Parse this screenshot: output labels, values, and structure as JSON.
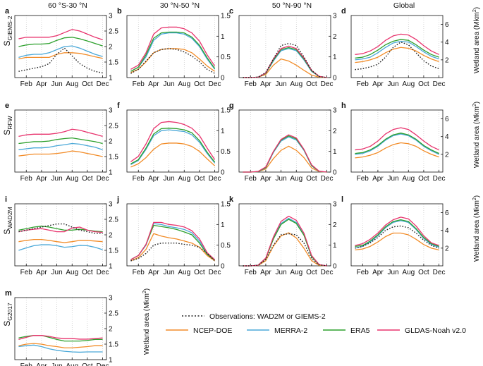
{
  "figure": {
    "row_labels": [
      {
        "main": "S",
        "sub": "GIEMS-2"
      },
      {
        "main": "S",
        "sub": "RFW"
      },
      {
        "main": "S",
        "sub": "WAD2M"
      },
      {
        "main": "S",
        "sub": "G2017"
      }
    ],
    "column_titles": [
      "60 °S-30 °N",
      "30 °N-50 °N",
      "50 °N-90 °N",
      "Global"
    ],
    "right_axis_label": "Wetland area (Mkm",
    "right_axis_label_sup": "2",
    "right_axis_label_close": ")"
  },
  "legend": {
    "observation_label": "Observations: WAD2M or GIEMS-2",
    "items": [
      {
        "key": "ncep",
        "label": "NCEP-DOE",
        "color": "#f28c28"
      },
      {
        "key": "merra",
        "label": "MERRA-2",
        "color": "#4aa8d8"
      },
      {
        "key": "era5",
        "label": "ERA5",
        "color": "#2ca02c"
      },
      {
        "key": "gldas",
        "label": "GLDAS-Noah v2.0",
        "color": "#e8336d"
      }
    ],
    "observation_color": "#222222"
  },
  "chart_data": [
    {
      "panel": "a",
      "type": "line",
      "row": 0,
      "col": 0,
      "ylim": [
        1,
        3
      ],
      "yticks": [
        1,
        1.5,
        2,
        2.5,
        3
      ],
      "xticks": [
        "Feb",
        "Apr",
        "Jun",
        "Aug",
        "Oct",
        "Dec"
      ],
      "series": {
        "obs": [
          1.2,
          1.25,
          1.3,
          1.35,
          1.45,
          1.75,
          1.95,
          1.7,
          1.45,
          1.3,
          1.2,
          1.15
        ],
        "ncep": [
          1.6,
          1.65,
          1.65,
          1.65,
          1.65,
          1.75,
          1.8,
          1.8,
          1.78,
          1.73,
          1.67,
          1.62
        ],
        "merra": [
          1.65,
          1.72,
          1.75,
          1.75,
          1.8,
          1.9,
          2.0,
          2.02,
          1.95,
          1.85,
          1.75,
          1.68
        ],
        "era5": [
          2.0,
          2.05,
          2.08,
          2.08,
          2.1,
          2.2,
          2.28,
          2.3,
          2.25,
          2.18,
          2.1,
          2.02
        ],
        "gldas": [
          2.25,
          2.3,
          2.3,
          2.3,
          2.3,
          2.35,
          2.45,
          2.55,
          2.5,
          2.4,
          2.3,
          2.22
        ]
      }
    },
    {
      "panel": "b",
      "type": "line",
      "row": 0,
      "col": 1,
      "ylim": [
        0,
        1.5
      ],
      "yticks": [
        0,
        0.5,
        1,
        1.5
      ],
      "xticks": [
        "Feb",
        "Apr",
        "Jun",
        "Aug",
        "Oct",
        "Dec"
      ],
      "series": {
        "obs": [
          0.1,
          0.2,
          0.4,
          0.6,
          0.68,
          0.7,
          0.68,
          0.62,
          0.52,
          0.38,
          0.2,
          0.1
        ],
        "ncep": [
          0.12,
          0.2,
          0.38,
          0.6,
          0.68,
          0.7,
          0.7,
          0.68,
          0.6,
          0.45,
          0.28,
          0.15
        ],
        "merra": [
          0.15,
          0.25,
          0.5,
          0.9,
          1.05,
          1.08,
          1.08,
          1.05,
          0.95,
          0.75,
          0.45,
          0.2
        ],
        "era5": [
          0.15,
          0.25,
          0.55,
          0.95,
          1.08,
          1.1,
          1.1,
          1.08,
          0.98,
          0.78,
          0.48,
          0.22
        ],
        "gldas": [
          0.2,
          0.3,
          0.6,
          1.05,
          1.2,
          1.22,
          1.22,
          1.18,
          1.08,
          0.88,
          0.55,
          0.28
        ]
      }
    },
    {
      "panel": "c",
      "type": "line",
      "row": 0,
      "col": 2,
      "ylim": [
        0,
        3
      ],
      "yticks": [
        0,
        1,
        2,
        3
      ],
      "xticks": [
        "Feb",
        "Apr",
        "Jun",
        "Aug",
        "Oct",
        "Dec"
      ],
      "series": {
        "obs": [
          0.0,
          0.0,
          0.02,
          0.25,
          0.9,
          1.55,
          1.65,
          1.55,
          1.0,
          0.35,
          0.05,
          0.0
        ],
        "ncep": [
          0.0,
          0.0,
          0.02,
          0.15,
          0.6,
          0.9,
          0.8,
          0.6,
          0.35,
          0.12,
          0.02,
          0.0
        ],
        "merra": [
          0.0,
          0.0,
          0.02,
          0.2,
          0.8,
          1.3,
          1.4,
          1.3,
          0.85,
          0.3,
          0.05,
          0.0
        ],
        "era5": [
          0.0,
          0.0,
          0.02,
          0.2,
          0.85,
          1.35,
          1.45,
          1.35,
          0.9,
          0.32,
          0.05,
          0.0
        ],
        "gldas": [
          0.0,
          0.0,
          0.02,
          0.22,
          0.9,
          1.4,
          1.52,
          1.4,
          0.95,
          0.35,
          0.06,
          0.0
        ]
      }
    },
    {
      "panel": "d",
      "type": "line",
      "row": 0,
      "col": 3,
      "ylim": [
        0,
        7
      ],
      "yticks": [
        2,
        4,
        6
      ],
      "xticks": [
        "Feb",
        "Apr",
        "Jun",
        "Aug",
        "Oct",
        "Dec"
      ],
      "series": {
        "obs": [
          0.9,
          1.0,
          1.2,
          1.5,
          2.3,
          3.4,
          4.0,
          3.7,
          2.8,
          1.9,
          1.3,
          1.0
        ],
        "ncep": [
          1.7,
          1.8,
          2.0,
          2.3,
          2.8,
          3.2,
          3.4,
          3.3,
          3.0,
          2.5,
          2.1,
          1.8
        ],
        "merra": [
          2.0,
          2.1,
          2.3,
          2.8,
          3.4,
          3.9,
          4.1,
          4.0,
          3.5,
          2.9,
          2.4,
          2.1
        ],
        "era5": [
          2.2,
          2.3,
          2.6,
          3.1,
          3.7,
          4.1,
          4.3,
          4.2,
          3.7,
          3.1,
          2.6,
          2.3
        ],
        "gldas": [
          2.6,
          2.7,
          3.0,
          3.5,
          4.2,
          4.7,
          4.9,
          4.8,
          4.3,
          3.6,
          3.0,
          2.6
        ]
      }
    },
    {
      "panel": "e",
      "type": "line",
      "row": 1,
      "col": 0,
      "ylim": [
        1,
        3
      ],
      "yticks": [
        1,
        1.5,
        2,
        2.5,
        3
      ],
      "xticks": [
        "Feb",
        "Apr",
        "Jun",
        "Aug",
        "Oct",
        "Dec"
      ],
      "series": {
        "ncep": [
          1.52,
          1.55,
          1.58,
          1.58,
          1.58,
          1.6,
          1.63,
          1.68,
          1.65,
          1.6,
          1.55,
          1.5
        ],
        "merra": [
          1.72,
          1.75,
          1.78,
          1.78,
          1.8,
          1.85,
          1.88,
          1.92,
          1.9,
          1.85,
          1.8,
          1.72
        ],
        "era5": [
          1.92,
          1.95,
          1.98,
          1.98,
          2.0,
          2.05,
          2.08,
          2.1,
          2.06,
          2.02,
          1.98,
          1.92
        ],
        "gldas": [
          2.15,
          2.2,
          2.22,
          2.22,
          2.22,
          2.25,
          2.3,
          2.38,
          2.35,
          2.28,
          2.22,
          2.15
        ]
      }
    },
    {
      "panel": "f",
      "type": "line",
      "row": 1,
      "col": 1,
      "ylim": [
        0,
        1.5
      ],
      "yticks": [
        0,
        0.5,
        1,
        1.5
      ],
      "xticks": [
        "Feb",
        "Apr",
        "Jun",
        "Aug",
        "Oct",
        "Dec"
      ],
      "series": {
        "ncep": [
          0.12,
          0.2,
          0.35,
          0.55,
          0.68,
          0.7,
          0.7,
          0.68,
          0.62,
          0.5,
          0.32,
          0.15
        ],
        "merra": [
          0.18,
          0.28,
          0.55,
          0.88,
          1.0,
          1.02,
          1.0,
          0.98,
          0.9,
          0.72,
          0.45,
          0.22
        ],
        "era5": [
          0.2,
          0.3,
          0.58,
          0.92,
          1.05,
          1.06,
          1.05,
          1.02,
          0.95,
          0.76,
          0.48,
          0.24
        ],
        "gldas": [
          0.25,
          0.38,
          0.68,
          1.05,
          1.2,
          1.22,
          1.2,
          1.15,
          1.06,
          0.88,
          0.58,
          0.3
        ]
      }
    },
    {
      "panel": "g",
      "type": "line",
      "row": 1,
      "col": 2,
      "ylim": [
        0,
        3
      ],
      "yticks": [
        0,
        1,
        2,
        3
      ],
      "xticks": [
        "Feb",
        "Apr",
        "Jun",
        "Aug",
        "Oct",
        "Dec"
      ],
      "series": {
        "ncep": [
          0.0,
          0.0,
          0.02,
          0.15,
          0.65,
          1.05,
          1.25,
          1.05,
          0.7,
          0.2,
          0.02,
          0.0
        ],
        "merra": [
          0.0,
          0.0,
          0.02,
          0.2,
          0.95,
          1.5,
          1.7,
          1.55,
          1.05,
          0.3,
          0.03,
          0.0
        ],
        "era5": [
          0.0,
          0.0,
          0.02,
          0.22,
          0.98,
          1.55,
          1.75,
          1.6,
          1.08,
          0.32,
          0.03,
          0.0
        ],
        "gldas": [
          0.0,
          0.0,
          0.03,
          0.25,
          1.0,
          1.58,
          1.8,
          1.65,
          1.1,
          0.35,
          0.04,
          0.0
        ]
      }
    },
    {
      "panel": "h",
      "type": "line",
      "row": 1,
      "col": 3,
      "ylim": [
        0,
        7
      ],
      "yticks": [
        2,
        4,
        6
      ],
      "xticks": [
        "Feb",
        "Apr",
        "Jun",
        "Aug",
        "Oct",
        "Dec"
      ],
      "series": {
        "ncep": [
          1.6,
          1.7,
          1.9,
          2.2,
          2.7,
          3.1,
          3.3,
          3.2,
          2.9,
          2.4,
          2.0,
          1.7
        ],
        "merra": [
          2.0,
          2.1,
          2.4,
          2.9,
          3.6,
          4.1,
          4.3,
          4.1,
          3.6,
          2.9,
          2.4,
          2.0
        ],
        "era5": [
          2.1,
          2.2,
          2.5,
          3.0,
          3.7,
          4.2,
          4.4,
          4.2,
          3.7,
          3.0,
          2.5,
          2.1
        ],
        "gldas": [
          2.5,
          2.6,
          2.9,
          3.5,
          4.3,
          4.8,
          5.0,
          4.8,
          4.2,
          3.5,
          2.9,
          2.5
        ]
      }
    },
    {
      "panel": "i",
      "type": "line",
      "row": 2,
      "col": 0,
      "ylim": [
        1,
        3
      ],
      "yticks": [
        1,
        1.5,
        2,
        2.5,
        3
      ],
      "xticks": [
        "Feb",
        "Apr",
        "Jun",
        "Aug",
        "Oct",
        "Dec"
      ],
      "series": {
        "obs": [
          2.1,
          2.15,
          2.2,
          2.25,
          2.3,
          2.35,
          2.35,
          2.25,
          2.15,
          2.1,
          2.05,
          2.05
        ],
        "ncep": [
          1.78,
          1.82,
          1.85,
          1.85,
          1.82,
          1.78,
          1.75,
          1.78,
          1.82,
          1.82,
          1.8,
          1.78
        ],
        "merra": [
          1.5,
          1.58,
          1.65,
          1.68,
          1.68,
          1.65,
          1.6,
          1.62,
          1.66,
          1.65,
          1.6,
          1.52
        ],
        "era5": [
          2.15,
          2.2,
          2.25,
          2.28,
          2.25,
          2.2,
          2.15,
          2.15,
          2.18,
          2.15,
          2.12,
          2.1
        ],
        "gldas": [
          2.1,
          2.15,
          2.18,
          2.2,
          2.15,
          2.1,
          2.1,
          2.22,
          2.25,
          2.15,
          2.1,
          2.08
        ]
      }
    },
    {
      "panel": "j",
      "type": "line",
      "row": 2,
      "col": 1,
      "ylim": [
        0,
        1.5
      ],
      "yticks": [
        0,
        0.5,
        1,
        1.5
      ],
      "xticks": [
        "Feb",
        "Apr",
        "Jun",
        "Aug",
        "Oct",
        "Dec"
      ],
      "series": {
        "obs": [
          0.12,
          0.18,
          0.3,
          0.5,
          0.55,
          0.55,
          0.55,
          0.52,
          0.5,
          0.45,
          0.3,
          0.12
        ],
        "ncep": [
          0.12,
          0.2,
          0.4,
          0.78,
          0.72,
          0.68,
          0.65,
          0.6,
          0.55,
          0.45,
          0.25,
          0.12
        ],
        "merra": [
          0.15,
          0.25,
          0.5,
          1.02,
          1.0,
          0.95,
          0.92,
          0.88,
          0.8,
          0.6,
          0.3,
          0.15
        ],
        "era5": [
          0.15,
          0.25,
          0.52,
          0.98,
          0.95,
          0.92,
          0.88,
          0.82,
          0.75,
          0.55,
          0.28,
          0.14
        ],
        "gldas": [
          0.15,
          0.25,
          0.52,
          1.05,
          1.05,
          1.0,
          0.98,
          0.94,
          0.85,
          0.65,
          0.32,
          0.15
        ]
      }
    },
    {
      "panel": "k",
      "type": "line",
      "row": 2,
      "col": 2,
      "ylim": [
        0,
        3
      ],
      "yticks": [
        0,
        1,
        2,
        3
      ],
      "xticks": [
        "Feb",
        "Apr",
        "Jun",
        "Aug",
        "Oct",
        "Dec"
      ],
      "series": {
        "obs": [
          0.0,
          0.0,
          0.03,
          0.3,
          1.0,
          1.5,
          1.55,
          1.5,
          1.1,
          0.35,
          0.05,
          0.0
        ],
        "ncep": [
          0.0,
          0.0,
          0.02,
          0.25,
          0.95,
          1.45,
          1.6,
          1.35,
          0.85,
          0.25,
          0.02,
          0.0
        ],
        "merra": [
          0.0,
          0.0,
          0.03,
          0.35,
          1.35,
          2.05,
          2.3,
          2.1,
          1.5,
          0.45,
          0.05,
          0.0
        ],
        "era5": [
          0.0,
          0.0,
          0.03,
          0.35,
          1.3,
          2.0,
          2.25,
          2.05,
          1.48,
          0.45,
          0.05,
          0.0
        ],
        "gldas": [
          0.0,
          0.0,
          0.03,
          0.38,
          1.4,
          2.15,
          2.4,
          2.2,
          1.58,
          0.5,
          0.06,
          0.0
        ]
      }
    },
    {
      "panel": "l",
      "type": "line",
      "row": 2,
      "col": 3,
      "ylim": [
        0,
        7
      ],
      "yticks": [
        2,
        4,
        6
      ],
      "xticks": [
        "Feb",
        "Apr",
        "Jun",
        "Aug",
        "Oct",
        "Dec"
      ],
      "series": {
        "obs": [
          2.0,
          2.2,
          2.6,
          3.2,
          4.0,
          4.4,
          4.5,
          4.3,
          3.7,
          2.9,
          2.3,
          2.0
        ],
        "ncep": [
          1.8,
          1.9,
          2.2,
          2.7,
          3.3,
          3.7,
          3.7,
          3.5,
          3.0,
          2.4,
          2.0,
          1.8
        ],
        "merra": [
          2.0,
          2.2,
          2.7,
          3.4,
          4.3,
          4.9,
          5.1,
          4.9,
          4.1,
          3.1,
          2.4,
          2.1
        ],
        "era5": [
          2.2,
          2.3,
          2.8,
          3.5,
          4.4,
          5.0,
          5.2,
          5.0,
          4.2,
          3.2,
          2.5,
          2.2
        ],
        "gldas": [
          2.3,
          2.5,
          3.0,
          3.7,
          4.6,
          5.2,
          5.5,
          5.3,
          4.5,
          3.4,
          2.6,
          2.3
        ]
      }
    },
    {
      "panel": "m",
      "type": "line",
      "row": 3,
      "col": 0,
      "ylim": [
        1,
        3
      ],
      "yticks": [
        1,
        1.5,
        2,
        2.5,
        3
      ],
      "xticks": [
        "Feb",
        "Apr",
        "Jun",
        "Aug",
        "Oct",
        "Dec"
      ],
      "series": {
        "ncep": [
          1.45,
          1.5,
          1.52,
          1.5,
          1.45,
          1.42,
          1.38,
          1.38,
          1.4,
          1.42,
          1.45,
          1.45
        ],
        "merra": [
          1.42,
          1.45,
          1.47,
          1.42,
          1.35,
          1.3,
          1.27,
          1.25,
          1.24,
          1.25,
          1.25,
          1.25
        ],
        "era5": [
          1.7,
          1.75,
          1.78,
          1.78,
          1.72,
          1.65,
          1.6,
          1.6,
          1.6,
          1.62,
          1.65,
          1.65
        ],
        "gldas": [
          1.65,
          1.72,
          1.78,
          1.78,
          1.75,
          1.7,
          1.68,
          1.68,
          1.66,
          1.66,
          1.68,
          1.7
        ]
      }
    }
  ]
}
